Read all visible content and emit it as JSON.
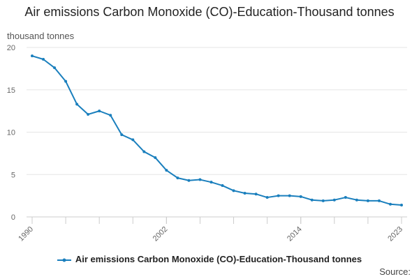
{
  "chart_data": {
    "type": "line",
    "title": "Air emissions Carbon Monoxide (CO)-Education-Thousand tonnes",
    "ylabel": "thousand tonnes",
    "xlabel": "",
    "ylim": [
      0,
      20
    ],
    "yticks": [
      0,
      5,
      10,
      15,
      20
    ],
    "xlim": [
      1990,
      2023
    ],
    "xticks": [
      1990,
      2002,
      2014,
      2023
    ],
    "grid": true,
    "legend_position": "bottom",
    "series": [
      {
        "name": "Air emissions Carbon Monoxide (CO)-Education-Thousand tonnes",
        "color": "#1a7fbd",
        "x": [
          1990,
          1991,
          1992,
          1993,
          1994,
          1995,
          1996,
          1997,
          1998,
          1999,
          2000,
          2001,
          2002,
          2003,
          2004,
          2005,
          2006,
          2007,
          2008,
          2009,
          2010,
          2011,
          2012,
          2013,
          2014,
          2015,
          2016,
          2017,
          2018,
          2019,
          2020,
          2021,
          2022,
          2023
        ],
        "values": [
          19.0,
          18.6,
          17.6,
          16.0,
          13.3,
          12.1,
          12.5,
          12.0,
          9.7,
          9.1,
          7.7,
          7.0,
          5.5,
          4.6,
          4.3,
          4.4,
          4.1,
          3.7,
          3.1,
          2.8,
          2.7,
          2.3,
          2.5,
          2.5,
          2.4,
          2.0,
          1.9,
          2.0,
          2.3,
          2.0,
          1.9,
          1.9,
          1.5,
          1.4
        ]
      }
    ]
  },
  "legend": {
    "label": "Air emissions Carbon Monoxide (CO)-Education-Thousand tonnes"
  },
  "source": {
    "label": "Source:"
  }
}
